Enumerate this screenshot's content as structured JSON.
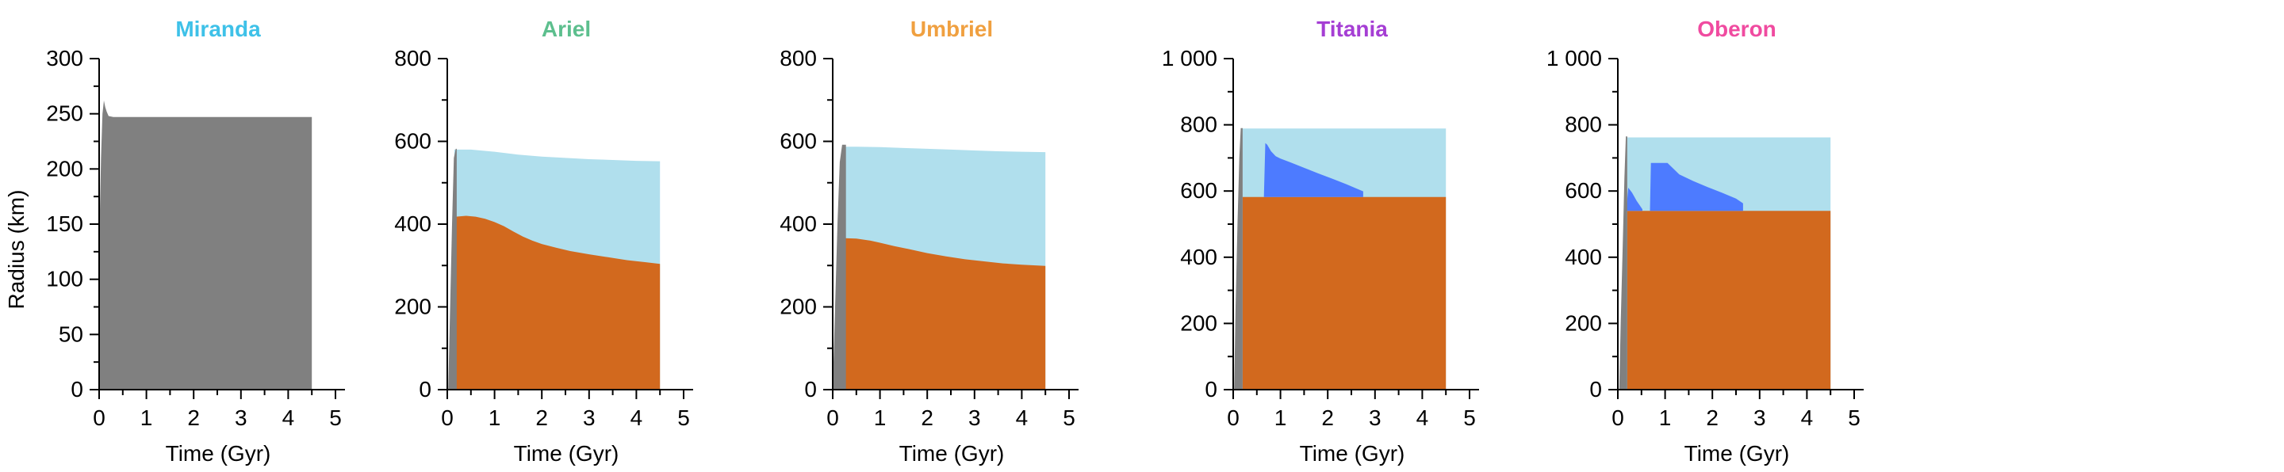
{
  "colors": {
    "rock": "#d2691e",
    "ocean": "#b0dfed",
    "liquid": "#4d7bff",
    "differentiating": "#808080",
    "axis": "#000000"
  },
  "ylabel": "Radius (km)",
  "chart_data": [
    {
      "type": "area",
      "title": "Miranda",
      "title_color": "#3ec1e8",
      "xlabel": "Time (Gyr)",
      "xlim": [
        0,
        5
      ],
      "xticks": [
        0,
        1,
        2,
        3,
        4,
        5
      ],
      "ylim": [
        0,
        300
      ],
      "yticks": [
        0,
        50,
        100,
        150,
        200,
        250,
        300
      ],
      "ytick_labels": [
        "0",
        "50",
        "100",
        "150",
        "200",
        "250",
        "300"
      ],
      "series": [
        {
          "color": "#808080",
          "x": [
            0.0,
            0.01,
            0.04,
            0.07,
            0.1,
            0.13,
            0.16,
            0.2,
            0.3,
            0.5,
            1.0,
            2.0,
            3.0,
            4.0,
            4.5,
            4.5,
            0.0
          ],
          "y": [
            0,
            150,
            210,
            250,
            262,
            256,
            252,
            248,
            247,
            247,
            247,
            247,
            247,
            247,
            247,
            0,
            0
          ]
        }
      ]
    },
    {
      "type": "area",
      "title": "Ariel",
      "title_color": "#5dbf8e",
      "xlabel": "Time (Gyr)",
      "xlim": [
        0,
        5
      ],
      "xticks": [
        0,
        1,
        2,
        3,
        4,
        5
      ],
      "ylim": [
        0,
        800
      ],
      "yticks": [
        0,
        200,
        400,
        600,
        800
      ],
      "ytick_labels": [
        "0",
        "200",
        "400",
        "600",
        "800"
      ],
      "series": [
        {
          "color": "#b0dfed",
          "x": [
            0.15,
            0.5,
            1.0,
            1.5,
            2.0,
            2.5,
            3.0,
            3.5,
            4.0,
            4.5,
            4.5,
            0.15
          ],
          "y": [
            580,
            580,
            575,
            568,
            563,
            560,
            557,
            555,
            553,
            552,
            0,
            0
          ]
        },
        {
          "color": "#d2691e",
          "x": [
            0.18,
            0.4,
            0.6,
            0.8,
            1.0,
            1.2,
            1.4,
            1.6,
            1.8,
            2.0,
            2.3,
            2.6,
            3.0,
            3.4,
            3.8,
            4.2,
            4.5,
            4.5,
            0.18
          ],
          "y": [
            418,
            420,
            418,
            413,
            405,
            395,
            382,
            370,
            360,
            352,
            343,
            335,
            327,
            320,
            313,
            308,
            304,
            0,
            0
          ]
        },
        {
          "color": "#808080",
          "x": [
            0.02,
            0.06,
            0.1,
            0.14,
            0.18,
            0.2,
            0.2,
            0.02
          ],
          "y": [
            0,
            200,
            400,
            560,
            582,
            582,
            0,
            0
          ]
        }
      ]
    },
    {
      "type": "area",
      "title": "Umbriel",
      "title_color": "#f0a040",
      "xlabel": "Time (Gyr)",
      "xlim": [
        0,
        5
      ],
      "xticks": [
        0,
        1,
        2,
        3,
        4,
        5
      ],
      "ylim": [
        0,
        800
      ],
      "yticks": [
        0,
        200,
        400,
        600,
        800
      ],
      "ytick_labels": [
        "0",
        "200",
        "400",
        "600",
        "800"
      ],
      "series": [
        {
          "color": "#b0dfed",
          "x": [
            0.2,
            0.5,
            1.0,
            1.5,
            2.0,
            2.5,
            3.0,
            3.5,
            4.0,
            4.5,
            4.5,
            0.2
          ],
          "y": [
            587,
            587,
            586,
            584,
            582,
            580,
            578,
            576,
            575,
            574,
            0,
            0
          ]
        },
        {
          "color": "#d2691e",
          "x": [
            0.25,
            0.5,
            0.8,
            1.0,
            1.3,
            1.6,
            2.0,
            2.4,
            2.8,
            3.2,
            3.6,
            4.0,
            4.5,
            4.5,
            0.25
          ],
          "y": [
            366,
            365,
            360,
            355,
            347,
            340,
            330,
            322,
            315,
            310,
            305,
            302,
            299,
            0,
            0
          ]
        },
        {
          "color": "#808080",
          "x": [
            0.0,
            0.05,
            0.1,
            0.15,
            0.2,
            0.28,
            0.28,
            0.0
          ],
          "y": [
            0,
            200,
            400,
            550,
            592,
            592,
            0,
            0
          ]
        }
      ]
    },
    {
      "type": "area",
      "title": "Titania",
      "title_color": "#a53ed4",
      "xlabel": "Time (Gyr)",
      "xlim": [
        0,
        5
      ],
      "xticks": [
        0,
        1,
        2,
        3,
        4,
        5
      ],
      "ylim": [
        0,
        1000
      ],
      "yticks": [
        0,
        200,
        400,
        600,
        800,
        1000
      ],
      "ytick_labels": [
        "0",
        "200",
        "400",
        "600",
        "800",
        "1 000"
      ],
      "series": [
        {
          "color": "#b0dfed",
          "x": [
            0.2,
            4.5,
            4.5,
            0.2
          ],
          "y": [
            789,
            789,
            0,
            0
          ]
        },
        {
          "color": "#d2691e",
          "x": [
            0.2,
            4.5,
            4.5,
            0.2
          ],
          "y": [
            582,
            582,
            0,
            0
          ]
        },
        {
          "color": "#4d7bff",
          "x": [
            0.65,
            0.68,
            0.72,
            0.8,
            0.9,
            1.0,
            1.2,
            1.5,
            1.8,
            2.1,
            2.4,
            2.6,
            2.75,
            2.75,
            0.65
          ],
          "y": [
            582,
            745,
            740,
            720,
            705,
            698,
            687,
            670,
            653,
            637,
            620,
            608,
            599,
            582,
            582
          ]
        },
        {
          "color": "#808080",
          "x": [
            0.02,
            0.05,
            0.09,
            0.13,
            0.16,
            0.2,
            0.2,
            0.02
          ],
          "y": [
            0,
            250,
            500,
            700,
            790,
            790,
            0,
            0
          ]
        }
      ]
    },
    {
      "type": "area",
      "title": "Oberon",
      "title_color": "#f04ba0",
      "xlabel": "Time (Gyr)",
      "xlim": [
        0,
        5
      ],
      "xticks": [
        0,
        1,
        2,
        3,
        4,
        5
      ],
      "ylim": [
        0,
        1000
      ],
      "yticks": [
        0,
        200,
        400,
        600,
        800,
        1000
      ],
      "ytick_labels": [
        "0",
        "200",
        "400",
        "600",
        "800",
        "1 000"
      ],
      "series": [
        {
          "color": "#b0dfed",
          "x": [
            0.2,
            4.5,
            4.5,
            0.2
          ],
          "y": [
            762,
            762,
            0,
            0
          ]
        },
        {
          "color": "#d2691e",
          "x": [
            0.2,
            4.5,
            4.5,
            0.2
          ],
          "y": [
            540,
            540,
            0,
            0
          ]
        },
        {
          "color": "#4d7bff",
          "x": [
            0.18,
            0.22,
            0.3,
            0.4,
            0.52,
            0.52,
            0.18
          ],
          "y": [
            540,
            610,
            595,
            570,
            545,
            540,
            540
          ]
        },
        {
          "color": "#4d7bff",
          "x": [
            0.68,
            0.7,
            1.05,
            1.3,
            1.6,
            1.9,
            2.2,
            2.5,
            2.65,
            2.65,
            0.68
          ],
          "y": [
            540,
            685,
            685,
            650,
            630,
            612,
            595,
            577,
            563,
            540,
            540
          ]
        },
        {
          "color": "#808080",
          "x": [
            0.03,
            0.06,
            0.1,
            0.14,
            0.17,
            0.2,
            0.2,
            0.03
          ],
          "y": [
            0,
            200,
            420,
            640,
            765,
            765,
            0,
            0
          ]
        }
      ]
    }
  ]
}
